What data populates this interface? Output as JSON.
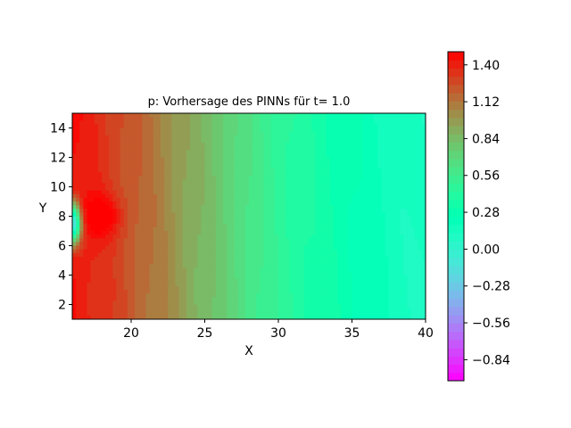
{
  "chart_data": {
    "type": "heatmap",
    "title": "p: Vorhersage des PINNs für t= 1.0",
    "xlabel": "X",
    "ylabel": "Y",
    "xlim": [
      16,
      40
    ],
    "ylim": [
      1,
      15
    ],
    "x_ticks": [
      20,
      25,
      30,
      35,
      40
    ],
    "x_tick_labels": [
      "20",
      "25",
      "30",
      "35",
      "40"
    ],
    "y_ticks": [
      2,
      4,
      6,
      8,
      10,
      12,
      14
    ],
    "y_tick_labels": [
      "2",
      "4",
      "6",
      "8",
      "10",
      "12",
      "14"
    ],
    "colorbar": {
      "vmin": -1.0,
      "vmax": 1.5,
      "ticks": [
        1.4,
        1.12,
        0.84,
        0.56,
        0.28,
        0.0,
        -0.28,
        -0.56,
        -0.84
      ],
      "tick_labels": [
        "1.40",
        "1.12",
        "0.84",
        "0.56",
        "0.28",
        "0.00",
        "−0.28",
        "−0.56",
        "−0.84"
      ],
      "colormap": "rainbow"
    },
    "field_description": {
      "profile_x": [
        16,
        18,
        20,
        22,
        24,
        26,
        28,
        30,
        32,
        34,
        36,
        38,
        40
      ],
      "profile_p": [
        1.45,
        1.35,
        1.22,
        1.08,
        0.92,
        0.78,
        0.62,
        0.48,
        0.38,
        0.3,
        0.22,
        0.15,
        0.12
      ],
      "source_minimum": {
        "x": 16,
        "y": 7.5,
        "p": -0.2
      },
      "source_maximum": {
        "x": 18,
        "y": 8,
        "p": 1.45
      }
    }
  }
}
